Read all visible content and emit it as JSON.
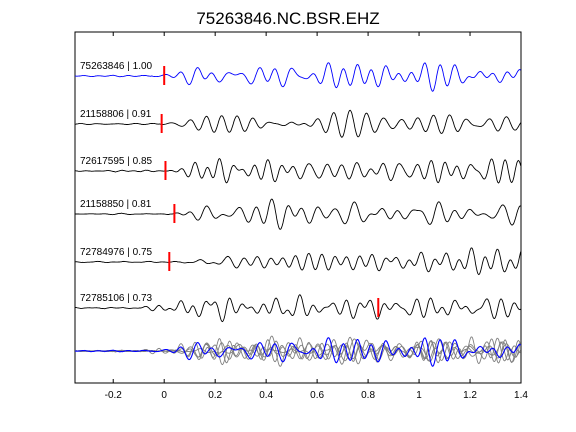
{
  "chart_data": {
    "type": "line",
    "title": "75263846.NC.BSR.EHZ",
    "xlabel": "",
    "ylabel": "",
    "xlim": [
      -0.35,
      1.4
    ],
    "xticks": [
      -0.2,
      0,
      0.2,
      0.4,
      0.6,
      0.8,
      1,
      1.2,
      1.4
    ],
    "xtick_labels": [
      "-0.2",
      "0",
      "0.2",
      "0.4",
      "0.6",
      "0.8",
      "1",
      "1.2",
      "1.4"
    ],
    "grid": false,
    "colors": {
      "reference": "#0000ff",
      "trace": "#000000",
      "pick": "#ff0000",
      "overlay": "#808080"
    },
    "traces": [
      {
        "label": "75263846 | 1.00",
        "event_id": "75263846",
        "correlation": 1.0,
        "pick_time": 0.0,
        "color": "#0000ff",
        "onset": -0.05,
        "seed": 1
      },
      {
        "label": "21158806 | 0.91",
        "event_id": "21158806",
        "correlation": 0.91,
        "pick_time": -0.01,
        "color": "#000000",
        "onset": -0.02,
        "seed": 2
      },
      {
        "label": "72617595 | 0.85",
        "event_id": "72617595",
        "correlation": 0.85,
        "pick_time": 0.005,
        "color": "#000000",
        "onset": 0.0,
        "seed": 3
      },
      {
        "label": "21158850 | 0.81",
        "event_id": "21158850",
        "correlation": 0.81,
        "pick_time": 0.04,
        "color": "#000000",
        "onset": 0.02,
        "seed": 4
      },
      {
        "label": "72784976 | 0.75",
        "event_id": "72784976",
        "correlation": 0.75,
        "pick_time": 0.02,
        "color": "#000000",
        "onset": 0.05,
        "seed": 5
      },
      {
        "label": "72785106 | 0.73",
        "event_id": "72785106",
        "correlation": 0.73,
        "pick_time": 0.84,
        "color": "#000000",
        "onset": -0.1,
        "seed": 6
      }
    ],
    "overlay": {
      "description_visible": false
    }
  }
}
